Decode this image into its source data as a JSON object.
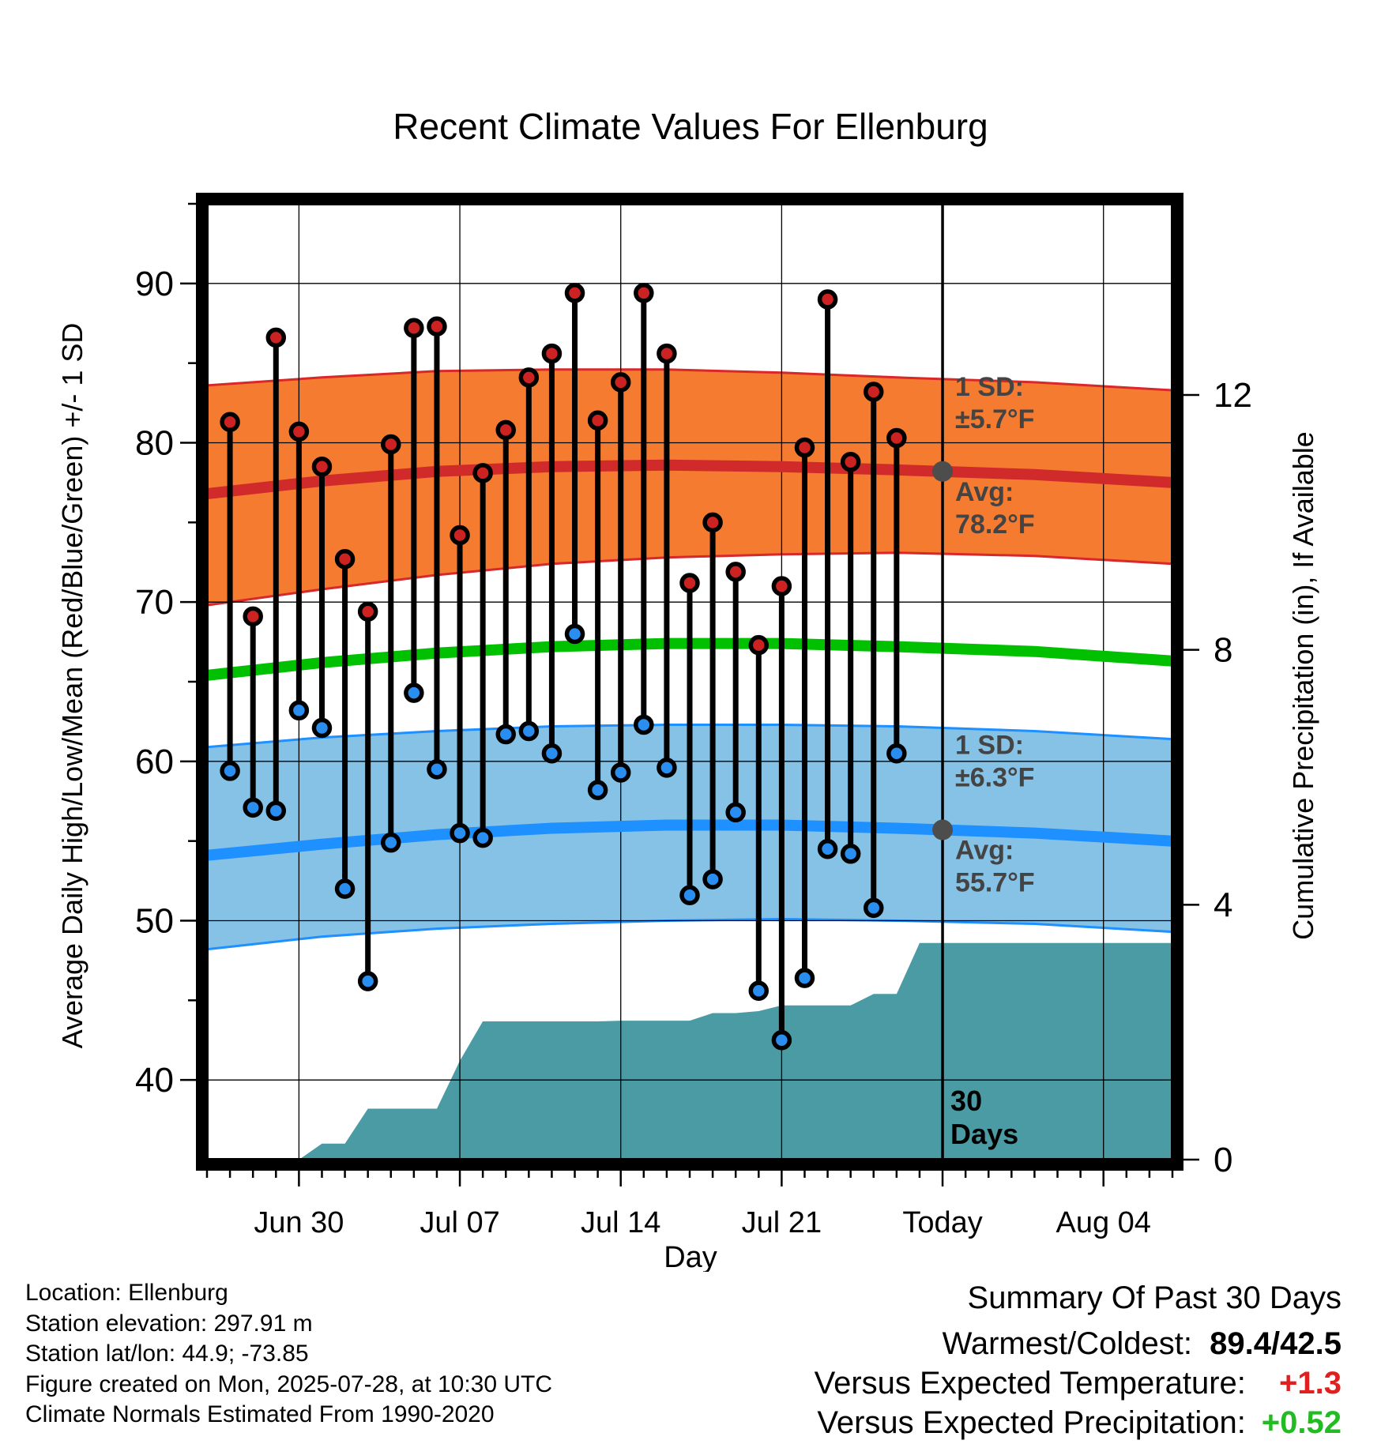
{
  "chart_data": {
    "type": "line",
    "title": "Recent Climate Values For Ellenburg",
    "xlabel": "Day",
    "ylabel": "Average Daily High/Low/Mean (Red/Blue/Green) +/- 1 SD",
    "y2label": "Cumulative Precipitation (in), If Available",
    "ylim": [
      35,
      95
    ],
    "y_ticks": [
      40,
      50,
      60,
      70,
      80,
      90
    ],
    "y2lim": [
      0,
      15
    ],
    "y2_ticks": [
      0,
      4,
      8,
      12
    ],
    "x_range": [
      "2025-06-26",
      "2025-08-07"
    ],
    "x_ticks": [
      {
        "date": "2025-06-30",
        "label": "Jun 30"
      },
      {
        "date": "2025-07-07",
        "label": "Jul 07"
      },
      {
        "date": "2025-07-14",
        "label": "Jul 14"
      },
      {
        "date": "2025-07-21",
        "label": "Jul 21"
      },
      {
        "date": "2025-07-28",
        "label": "Today"
      },
      {
        "date": "2025-08-04",
        "label": "Aug 04"
      }
    ],
    "grid": true,
    "today": "2025-07-28",
    "today_label": [
      "30",
      "Days"
    ],
    "annotations": {
      "high": {
        "sd_label": "1 SD:",
        "sd_value": "±5.7°F",
        "avg_label": "Avg:",
        "avg_value": "78.2°F",
        "avg_point": 78.2
      },
      "low": {
        "sd_label": "1 SD:",
        "sd_value": "±6.3°F",
        "avg_label": "Avg:",
        "avg_value": "55.7°F",
        "avg_point": 55.7
      }
    },
    "normals": {
      "dates": [
        "2025-06-26",
        "2025-07-01",
        "2025-07-06",
        "2025-07-11",
        "2025-07-16",
        "2025-07-21",
        "2025-07-26",
        "2025-08-01",
        "2025-08-07"
      ],
      "high_mean": [
        76.8,
        77.6,
        78.2,
        78.5,
        78.6,
        78.5,
        78.3,
        78.0,
        77.5
      ],
      "high_upper": [
        83.6,
        84.1,
        84.5,
        84.6,
        84.6,
        84.4,
        84.1,
        83.8,
        83.3
      ],
      "high_lower": [
        69.8,
        70.8,
        71.7,
        72.4,
        72.8,
        73.0,
        73.1,
        72.9,
        72.4
      ],
      "mean": [
        65.4,
        66.2,
        66.8,
        67.2,
        67.4,
        67.4,
        67.2,
        66.9,
        66.3
      ],
      "low_mean": [
        54.1,
        54.8,
        55.4,
        55.8,
        56.0,
        56.0,
        55.8,
        55.5,
        55.0
      ],
      "low_upper": [
        60.9,
        61.5,
        61.9,
        62.2,
        62.3,
        62.3,
        62.2,
        61.9,
        61.4
      ],
      "low_lower": [
        48.2,
        49.0,
        49.5,
        49.8,
        50.0,
        50.1,
        50.0,
        49.8,
        49.3
      ]
    },
    "observed": {
      "dates": [
        "2025-06-27",
        "2025-06-28",
        "2025-06-29",
        "2025-06-30",
        "2025-07-01",
        "2025-07-02",
        "2025-07-03",
        "2025-07-04",
        "2025-07-05",
        "2025-07-06",
        "2025-07-07",
        "2025-07-08",
        "2025-07-09",
        "2025-07-10",
        "2025-07-11",
        "2025-07-12",
        "2025-07-13",
        "2025-07-14",
        "2025-07-15",
        "2025-07-16",
        "2025-07-17",
        "2025-07-18",
        "2025-07-19",
        "2025-07-20",
        "2025-07-21",
        "2025-07-22",
        "2025-07-23",
        "2025-07-24",
        "2025-07-25",
        "2025-07-26",
        "2025-07-27"
      ],
      "high": [
        81.3,
        69.1,
        86.6,
        80.7,
        78.5,
        72.7,
        69.4,
        79.9,
        87.2,
        87.3,
        74.2,
        78.1,
        80.8,
        84.1,
        85.6,
        89.4,
        81.4,
        83.8,
        89.4,
        85.6,
        71.2,
        75.0,
        71.9,
        67.3,
        71.0,
        79.7,
        89.0,
        78.8,
        83.2,
        80.3,
        null
      ],
      "low": [
        59.4,
        57.1,
        56.9,
        63.2,
        62.1,
        52.0,
        46.2,
        54.9,
        64.3,
        59.5,
        55.5,
        55.2,
        61.7,
        61.9,
        60.5,
        68.0,
        58.2,
        59.3,
        62.3,
        59.6,
        51.6,
        52.6,
        56.8,
        45.6,
        42.5,
        46.4,
        54.5,
        54.2,
        50.8,
        60.5,
        null
      ],
      "cumulative_precip": [
        0.0,
        0.0,
        0.0,
        0.0,
        0.25,
        0.25,
        0.8,
        0.8,
        0.8,
        0.8,
        1.55,
        2.17,
        2.17,
        2.17,
        2.17,
        2.17,
        2.17,
        2.18,
        2.18,
        2.18,
        2.18,
        2.3,
        2.3,
        2.33,
        2.42,
        2.42,
        2.42,
        2.42,
        2.6,
        2.6,
        3.4
      ],
      "precip_extend_to": "2025-08-07"
    },
    "colors": {
      "high_band": "#f47b30",
      "high_line": "#d02a2a",
      "high_band_edge": "#d8282a",
      "low_band": "#85c2e6",
      "low_line": "#1e90ff",
      "mean_line": "#00c000",
      "precip": "#4a9ba4",
      "high_dot": "#cc2222",
      "low_dot": "#2a8df0",
      "annotation": "#444444",
      "avg_point": "#4d4d4d"
    }
  },
  "footer": {
    "location": "Location: Ellenburg",
    "elevation": "Station elevation: 297.91 m",
    "latlon": "Station lat/lon: 44.9; -73.85",
    "created": "Figure created on Mon, 2025-07-28, at 10:30 UTC",
    "normals": "Climate Normals Estimated From 1990-2020"
  },
  "summary": {
    "header": "Summary Of Past 30 Days",
    "warm_cold_label": "Warmest/Coldest:",
    "warm_cold_value": "89.4/42.5",
    "temp_label": "Versus Expected Temperature:",
    "temp_value": "+1.3",
    "temp_color": "#e02020",
    "precip_label": "Versus Expected Precipitation:",
    "precip_value": "+0.52",
    "precip_color": "#22bb22"
  }
}
